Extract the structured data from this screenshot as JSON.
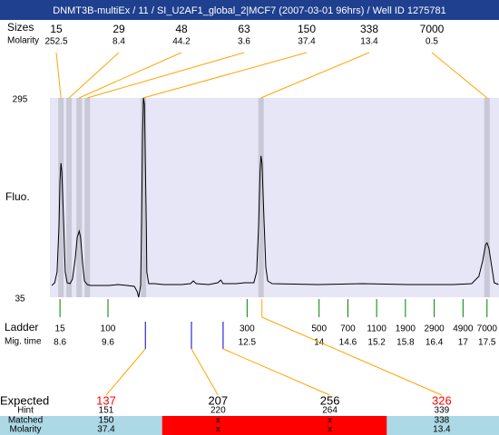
{
  "title": "DNMT3B-multiEx / 11 / SI_U2AF1_global_2|MCF7 (2007-03-01 96hrs) / Well ID 1275781",
  "peaks": {
    "label": "Sizes",
    "molarity_label": "Molarity",
    "sizes": [
      15,
      29,
      48,
      63,
      150,
      338,
      7000
    ],
    "molarity": [
      252.5,
      8.4,
      44.2,
      3.6,
      37.4,
      13.4,
      0.5
    ],
    "mig_time": [
      8.62,
      8.79,
      9.0,
      9.17,
      10.34,
      12.79,
      17.5
    ]
  },
  "chart_data": {
    "type": "line",
    "y_label": "Fluo.",
    "xlim": [
      8.39,
      17.75
    ],
    "ylim": [
      35,
      295
    ],
    "yticks": [
      35,
      295
    ],
    "background": "#e6e6f6",
    "band_color": "#c8c8d6",
    "line_color": "#ffa500",
    "x": [
      8.43,
      8.49,
      8.54,
      8.58,
      8.6,
      8.62,
      8.64,
      8.68,
      8.71,
      8.75,
      8.81,
      8.86,
      8.92,
      8.96,
      9.0,
      9.03,
      9.07,
      9.11,
      9.17,
      9.24,
      9.43,
      9.62,
      9.81,
      10.0,
      10.15,
      10.21,
      10.24,
      10.28,
      10.3,
      10.32,
      10.34,
      10.36,
      10.38,
      10.4,
      10.41,
      10.45,
      10.57,
      10.76,
      11.13,
      11.32,
      11.38,
      11.44,
      11.7,
      11.89,
      11.95,
      12.0,
      12.27,
      12.45,
      12.64,
      12.7,
      12.74,
      12.77,
      12.79,
      12.81,
      12.85,
      12.89,
      12.93,
      13.02,
      13.97,
      14.91,
      15.86,
      16.8,
      17.18,
      17.33,
      17.41,
      17.47,
      17.5,
      17.54,
      17.6,
      17.65,
      17.74
    ],
    "series": [
      {
        "color": "#000000",
        "values": [
          50.4,
          53.9,
          68.1,
          127.2,
          186.3,
          209.9,
          198.1,
          127.2,
          68.1,
          53.9,
          52.7,
          58.6,
          85.8,
          113,
          121.3,
          113,
          79.9,
          56.3,
          51.5,
          50.4,
          50.4,
          50.4,
          51.5,
          50.4,
          49.2,
          42.1,
          35,
          50.4,
          127.2,
          245.4,
          295,
          286.7,
          209.9,
          127.2,
          68.1,
          52.7,
          52.7,
          51.5,
          51.5,
          52.7,
          56.3,
          52.7,
          51.5,
          53.9,
          57.5,
          52.7,
          52.7,
          53.9,
          53.9,
          68.1,
          127.2,
          198.1,
          219.4,
          209.9,
          139,
          74,
          56.3,
          52.7,
          51.5,
          52.7,
          51.5,
          51.5,
          52.7,
          62.2,
          82.3,
          103.5,
          105.9,
          98.8,
          74,
          53.9,
          51.5
        ]
      }
    ]
  },
  "ladder": {
    "label": "Ladder",
    "mig_label": "Mig. time",
    "color": "#008000",
    "sizes": [
      15,
      100,
      300,
      500,
      700,
      1100,
      1900,
      2900,
      4900,
      7000
    ],
    "mig_time": [
      8.6,
      9.6,
      12.5,
      14,
      14.6,
      15.2,
      15.8,
      16.4,
      17,
      17.5
    ]
  },
  "expected": {
    "label": "Expected",
    "hint_label": "Hint",
    "matched_label": "Matched",
    "molarity_label": "Molarity",
    "sizes": [
      137,
      207,
      256,
      326
    ],
    "size_colors": [
      "#ff0000",
      "#000000",
      "#000000",
      "#ff0000"
    ],
    "hint": [
      151,
      220,
      264,
      339
    ],
    "matched": [
      150,
      "x",
      "x",
      338
    ],
    "molarity": [
      37.4,
      "x",
      "x",
      13.4
    ],
    "cell_colors": [
      "#add8e6",
      "#ff0000",
      "#ff0000",
      "#add8e6"
    ],
    "mig_time": [
      10.38,
      11.34,
      12.0,
      12.81
    ],
    "marker_colors": [
      "#0000cc",
      "#0000cc",
      "#0000cc",
      "#ffa500"
    ]
  }
}
